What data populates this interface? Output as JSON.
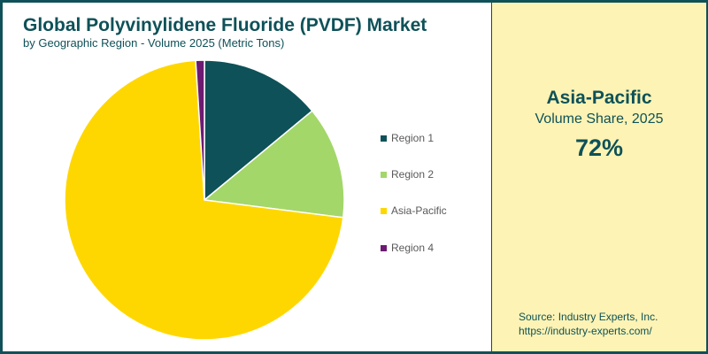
{
  "header": {
    "title": "Global Polyvinylidene Fluoride (PVDF) Market",
    "subtitle": "by Geographic Region - Volume 2025 (Metric Tons)"
  },
  "legend": {
    "items": [
      {
        "label": "Region 1",
        "color": "#0e5158"
      },
      {
        "label": "Region 2",
        "color": "#a3d76a"
      },
      {
        "label": "Asia-Pacific",
        "color": "#ffd700"
      },
      {
        "label": "Region 4",
        "color": "#6d1a72"
      }
    ]
  },
  "highlight": {
    "region": "Asia-Pacific",
    "metric": "Volume Share, 2025",
    "value": "72%"
  },
  "source": {
    "line1": "Source: Industry Experts, Inc.",
    "line2": "https://industry-experts.com/"
  },
  "chart_data": {
    "type": "pie",
    "title": "Global Polyvinylidene Fluoride (PVDF) Market",
    "subtitle": "by Geographic Region - Volume 2025 (Metric Tons)",
    "categories": [
      "Region 1",
      "Region 2",
      "Asia-Pacific",
      "Region 4"
    ],
    "values": [
      14,
      13,
      72,
      1
    ],
    "unit": "%",
    "colors": [
      "#0e5158",
      "#a3d76a",
      "#ffd700",
      "#6d1a72"
    ],
    "start_angle": "12 o'clock, clockwise",
    "legend_position": "right"
  }
}
